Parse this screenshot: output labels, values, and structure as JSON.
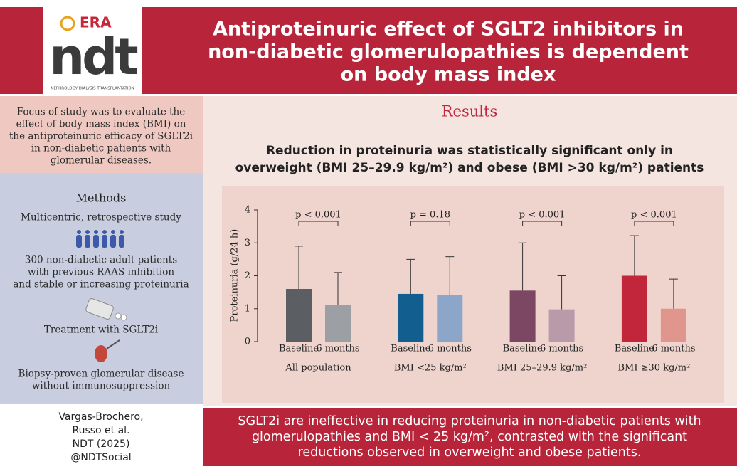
{
  "header": {
    "logo": {
      "era": "ERA",
      "ndt": "ndt",
      "tagline": "NEPHROLOGY DIALYSIS TRANSPLANTATION"
    },
    "title": [
      "Antiproteinuric effect of SGLT2 inhibitors in",
      "non-diabetic glomerulopathies is dependent",
      "on body mass index"
    ]
  },
  "left_panel": {
    "focus": [
      "Focus of study was to evaluate the",
      "effect of body mass index (BMI) on",
      "the antiproteinuric efficacy of SGLT2i",
      "in non-diabetic patients with",
      "glomerular diseases."
    ],
    "methods_title": "Methods",
    "methods": [
      [
        "Multicentric, retrospective study"
      ],
      [
        "300 non-diabetic adult patients",
        "with previous RAAS inhibition",
        "and stable or increasing proteinuria"
      ],
      [
        "Treatment with SGLT2i"
      ],
      [
        "Biopsy-proven glomerular disease",
        "without immunosuppression"
      ]
    ]
  },
  "results": {
    "title": "Results",
    "subtitle": [
      "Reduction in proteinuria was statistically significant only in",
      "overweight (BMI 25–29.9 kg/m²) and obese (BMI >30 kg/m²) patients"
    ]
  },
  "chart_data": {
    "type": "bar",
    "ylabel": "Proteinuria (g/24 h)",
    "categories": [
      "All population",
      "BMI <25 kg/m²",
      "BMI 25–29.9 kg/m²",
      "BMI ≥30 kg/m²"
    ],
    "series": [
      {
        "name": "Baseline",
        "colors": [
          "#5b5e63",
          "#125e8f",
          "#7b4762",
          "#c1263b"
        ],
        "values": [
          1.6,
          1.45,
          1.55,
          2.0
        ],
        "errors": [
          1.3,
          1.05,
          1.45,
          1.22
        ]
      },
      {
        "name": "6 months",
        "colors": [
          "#9c9fa4",
          "#8ca6c9",
          "#b89aa9",
          "#e0968c"
        ],
        "values": [
          1.12,
          1.42,
          0.98,
          1.0
        ],
        "errors": [
          0.98,
          1.16,
          1.02,
          0.9
        ]
      }
    ],
    "annotations": [
      "p < 0.001",
      "p = 0.18",
      "p < 0.001",
      "p < 0.001"
    ],
    "ylim": [
      0,
      4
    ],
    "yticks": [
      0,
      1,
      2,
      3,
      4
    ]
  },
  "footer": {
    "citation": [
      "Vargas-Brochero,",
      "Russo et al.",
      "NDT (2025)",
      "@NDTSocial"
    ],
    "conclusion": [
      "SGLT2i are ineffective in reducing proteinuria in non-diabetic patients with",
      "glomerulopathies and BMI < 25 kg/m², contrasted with the significant",
      "reductions observed in overweight and obese patients."
    ]
  }
}
